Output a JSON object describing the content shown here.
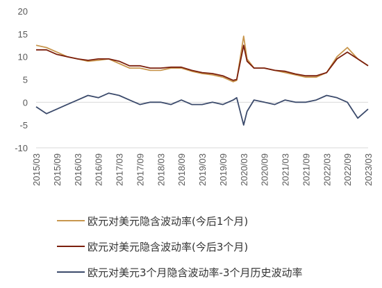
{
  "chart_data": {
    "type": "line",
    "title": "",
    "xlabel": "",
    "ylabel": "",
    "ylim": [
      -10,
      20
    ],
    "yticks": [
      "20",
      "15",
      "10",
      "5",
      "0",
      "-5",
      "-10"
    ],
    "xticks": [
      "2015/03",
      "2015/09",
      "2016/03",
      "2016/09",
      "2017/03",
      "2017/09",
      "2018/03",
      "2018/09",
      "2019/03",
      "2019/09",
      "2020/03",
      "2020/09",
      "2021/03",
      "2021/09",
      "2022/03",
      "2022/09",
      "2023/03"
    ],
    "grid": "y-zero-line-only",
    "legend_position": "bottom",
    "x": [
      "2015/03",
      "2015/06",
      "2015/09",
      "2015/12",
      "2016/03",
      "2016/06",
      "2016/09",
      "2016/12",
      "2017/03",
      "2017/06",
      "2017/09",
      "2017/12",
      "2018/03",
      "2018/06",
      "2018/09",
      "2018/12",
      "2019/03",
      "2019/06",
      "2019/09",
      "2019/12",
      "2020/01",
      "2020/03",
      "2020/04",
      "2020/06",
      "2020/09",
      "2020/12",
      "2021/03",
      "2021/06",
      "2021/09",
      "2021/12",
      "2022/03",
      "2022/06",
      "2022/09",
      "2022/12",
      "2023/03"
    ],
    "series": [
      {
        "name": "欧元对美元隐含波动率(今后1个月)",
        "color": "#c8964d",
        "values": [
          12.5,
          12,
          11,
          10,
          9.5,
          9,
          9.2,
          9.5,
          8.5,
          7.5,
          7.5,
          7,
          7,
          7.5,
          7.5,
          6.8,
          6.3,
          6,
          5.5,
          4.5,
          4.8,
          14.5,
          9.5,
          7.5,
          7.5,
          7,
          6.5,
          6,
          5.5,
          5.5,
          6.5,
          10,
          12,
          9.5,
          8
        ]
      },
      {
        "name": "欧元对美元隐含波动率(今后3个月)",
        "color": "#7b1f0c",
        "values": [
          11.5,
          11.5,
          10.5,
          10,
          9.5,
          9.2,
          9.5,
          9.5,
          9,
          8,
          8,
          7.5,
          7.5,
          7.7,
          7.7,
          7,
          6.5,
          6.3,
          5.8,
          4.8,
          5,
          12.5,
          9,
          7.5,
          7.5,
          7,
          6.8,
          6.2,
          5.8,
          5.8,
          6.5,
          9.5,
          11,
          9.5,
          8
        ]
      },
      {
        "name": "欧元对美元3个月隐含波动率-3个月历史波动率",
        "color": "#3b4a6b",
        "values": [
          -1,
          -2.5,
          -1.5,
          -0.5,
          0.5,
          1.5,
          1,
          2,
          1.5,
          0.5,
          -0.5,
          0,
          0,
          -0.5,
          0.5,
          -0.5,
          -0.5,
          0,
          -0.5,
          0.5,
          1,
          -5,
          -2,
          0.5,
          0,
          -0.5,
          0.5,
          0,
          0,
          0.5,
          1.5,
          1,
          0,
          -3.5,
          -1.5
        ]
      }
    ]
  }
}
